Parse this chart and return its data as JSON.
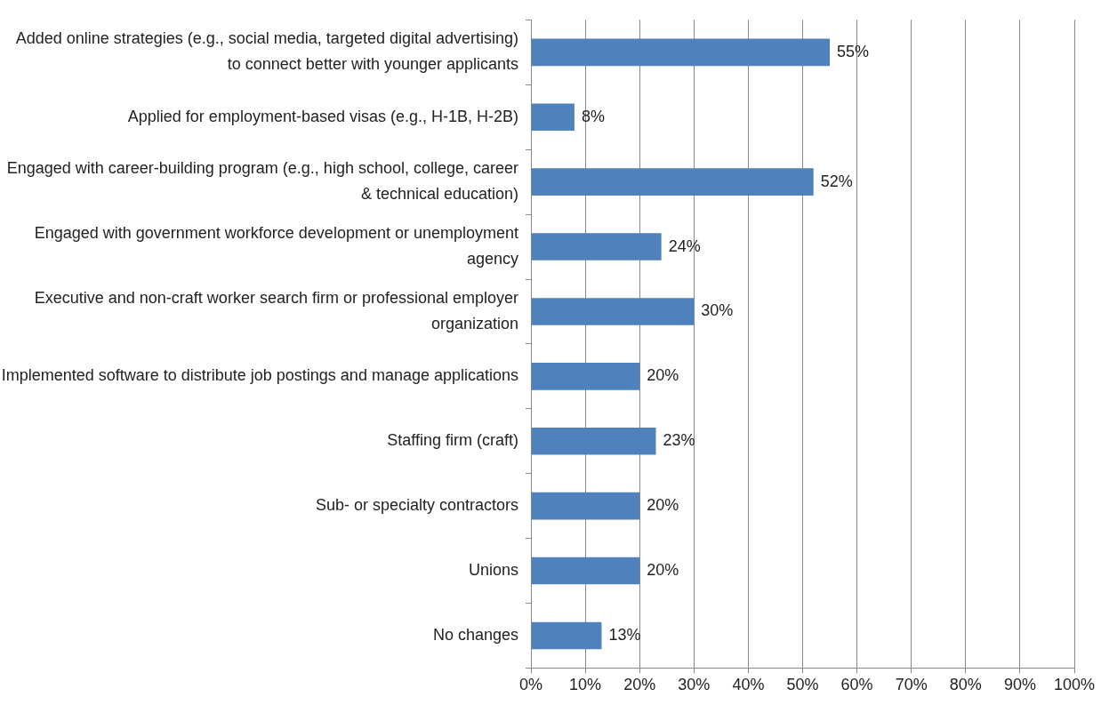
{
  "chart_data": {
    "type": "bar",
    "orientation": "horizontal",
    "categories": [
      "Added online strategies (e.g., social media, targeted digital advertising) to connect better with younger applicants",
      "Applied for employment-based visas (e.g., H-1B, H-2B)",
      "Engaged with career-building program (e.g., high school, college, career & technical education)",
      "Engaged with government workforce development or unemployment agency",
      "Executive and non-craft worker search firm or professional employer organization",
      "Implemented software to distribute job postings and manage applications",
      "Staffing firm (craft)",
      "Sub- or specialty contractors",
      "Unions",
      "No changes"
    ],
    "values": [
      55,
      8,
      52,
      24,
      30,
      20,
      23,
      20,
      20,
      13
    ],
    "value_labels": [
      "55%",
      "8%",
      "52%",
      "24%",
      "30%",
      "20%",
      "23%",
      "20%",
      "20%",
      "13%"
    ],
    "color": "#4f81bd",
    "xlim": [
      0,
      100
    ],
    "xticks": [
      {
        "value": 0,
        "label": "0%"
      },
      {
        "value": 10,
        "label": "10%"
      },
      {
        "value": 20,
        "label": "20%"
      },
      {
        "value": 30,
        "label": "30%"
      },
      {
        "value": 40,
        "label": "40%"
      },
      {
        "value": 50,
        "label": "50%"
      },
      {
        "value": 60,
        "label": "60%"
      },
      {
        "value": 70,
        "label": "70%"
      },
      {
        "value": 80,
        "label": "80%"
      },
      {
        "value": 90,
        "label": "90%"
      },
      {
        "value": 100,
        "label": "100%"
      }
    ],
    "grid": "x"
  }
}
